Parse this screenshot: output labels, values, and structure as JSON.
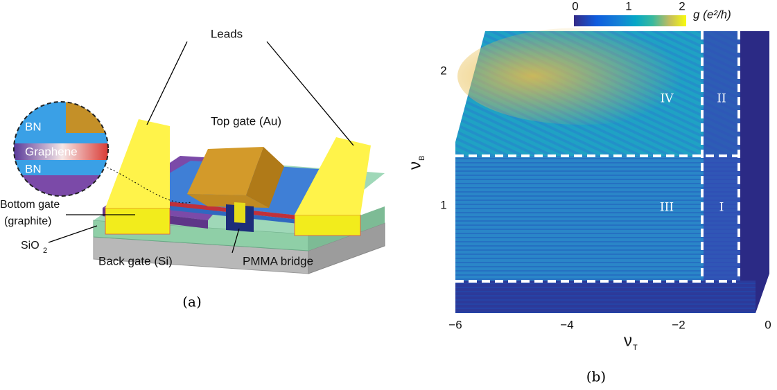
{
  "panel_a": {
    "caption": "(a)",
    "labels": {
      "leads": "Leads",
      "top_gate": "Top gate (Au)",
      "inset_bn_top": "BN",
      "inset_graphene": "Graphene",
      "inset_bn_bottom": "BN",
      "bottom_gate": "Bottom gate",
      "bottom_gate_material": "(graphite)",
      "sio2": "SiO",
      "sio2_subscript": "2",
      "back_gate": "Back gate (Si)",
      "pmma": "PMMA bridge"
    }
  },
  "panel_b": {
    "caption": "(b)",
    "colorbar": {
      "ticks": [
        "0",
        "1",
        "2"
      ],
      "label": "g (e²/h)"
    },
    "y_axis": {
      "label": "ν",
      "subscript": "B",
      "ticks": [
        "2",
        "1"
      ]
    },
    "x_axis": {
      "label": "ν",
      "subscript": "T",
      "ticks": [
        "−6",
        "−4",
        "−2",
        "0"
      ]
    },
    "regions": [
      "IV",
      "II",
      "III",
      "I"
    ]
  }
}
